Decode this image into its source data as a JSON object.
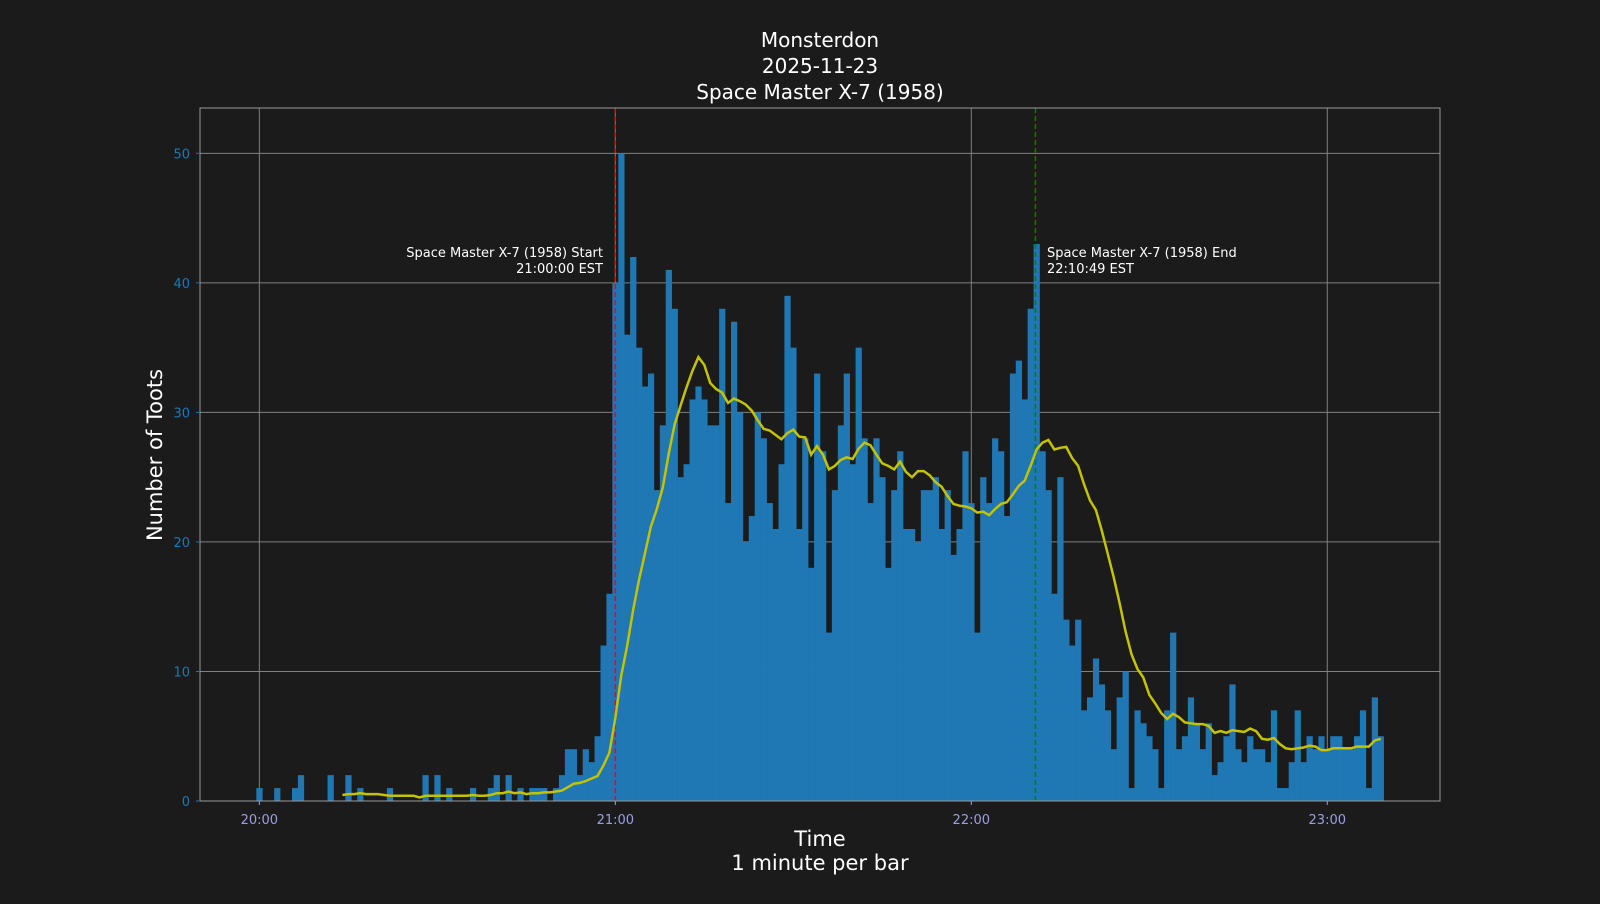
{
  "chart_data": {
    "type": "bar",
    "title_lines": [
      "Monsterdon",
      "2025-11-23",
      "Space Master X-7 (1958)"
    ],
    "xlabel": "Time",
    "xlabel_sub": "1 minute per bar",
    "ylabel": "Number of Toots",
    "x_start_time": "20:00",
    "x_ticks": [
      "20:00",
      "21:00",
      "22:00",
      "23:00"
    ],
    "y_ticks": [
      0,
      10,
      20,
      30,
      40,
      50
    ],
    "ylim": [
      0,
      53.5
    ],
    "xlim_minutes_from_20_00": [
      -10,
      199
    ],
    "grid": true,
    "colors": {
      "background": "#1b1b1b",
      "bars": "#1f77b4",
      "moving_average": "#c3c300",
      "start_line": "#ff0000",
      "end_line": "#008000",
      "grid": "#808080",
      "ytick": "#1f77b4",
      "xtick": "#9d9de6"
    },
    "bar_minutes_from_20_00": [
      0,
      3,
      6,
      7,
      12,
      15,
      17,
      22,
      28,
      30,
      32,
      36,
      39,
      40,
      42,
      44,
      46,
      47,
      48,
      50,
      51,
      52,
      53,
      54,
      55,
      56,
      57,
      58,
      59
    ],
    "bar_values_20h": [
      1,
      1,
      1,
      2,
      2,
      2,
      1,
      1,
      2,
      2,
      1,
      1,
      1,
      2,
      2,
      1,
      1,
      1,
      1,
      1,
      2,
      4,
      4,
      2,
      4,
      3,
      5,
      12,
      16
    ],
    "bar_values_from_21_00": [
      40,
      50,
      36,
      42,
      35,
      32,
      33,
      24,
      29,
      41,
      38,
      25,
      26,
      31,
      32,
      31,
      29,
      29,
      38,
      23,
      37,
      30,
      20,
      22,
      30,
      28,
      23,
      21,
      26,
      39,
      35,
      21,
      28,
      18,
      33,
      27,
      13,
      24,
      29,
      33,
      26,
      35,
      28,
      23,
      28,
      25,
      18,
      24,
      27,
      21,
      21,
      20,
      24,
      24,
      25,
      21,
      24,
      19,
      21,
      27,
      23,
      13,
      25,
      23,
      28,
      27,
      22,
      33,
      34,
      31,
      38,
      43,
      27,
      24,
      16,
      25,
      14,
      12,
      14,
      7,
      8,
      11,
      9,
      7,
      4,
      8,
      10,
      1,
      7,
      6,
      5,
      4,
      1,
      7,
      13,
      4,
      5,
      8,
      6,
      4,
      6,
      2,
      3,
      5,
      9,
      4,
      3,
      5,
      4,
      4,
      3,
      7,
      1,
      1,
      3,
      7,
      3,
      5,
      4,
      5,
      4,
      5,
      5,
      4,
      4,
      5,
      7,
      1,
      8,
      5
    ],
    "moving_average_window_minutes": 15,
    "annotations": {
      "start": {
        "label": "Space Master X-7 (1958) Start",
        "time": "21:00:00 EST"
      },
      "end": {
        "label": "Space Master X-7 (1958) End",
        "time": "22:10:49 EST"
      }
    }
  }
}
